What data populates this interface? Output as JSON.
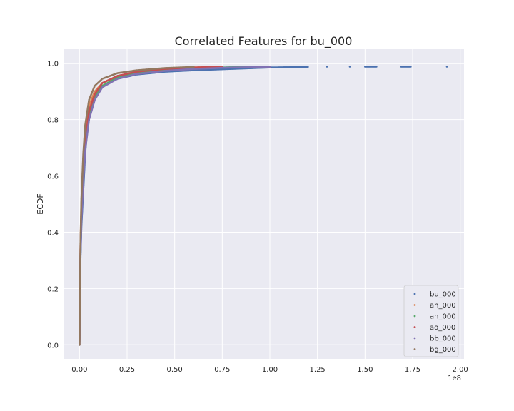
{
  "chart_data": {
    "type": "scatter",
    "title": "Correlated Features for bu_000",
    "xlabel": "",
    "ylabel": "ECDF",
    "x_offset_label": "1e8",
    "xlim": [
      -0.08,
      2.02
    ],
    "ylim": [
      -0.05,
      1.05
    ],
    "x_ticks": [
      0.0,
      0.25,
      0.5,
      0.75,
      1.0,
      1.25,
      1.5,
      1.75,
      2.0
    ],
    "x_tick_labels": [
      "0.00",
      "0.25",
      "0.50",
      "0.75",
      "1.00",
      "1.25",
      "1.50",
      "1.75",
      "2.00"
    ],
    "y_ticks": [
      0.0,
      0.2,
      0.4,
      0.6,
      0.8,
      1.0
    ],
    "y_tick_labels": [
      "0.0",
      "0.2",
      "0.4",
      "0.6",
      "0.8",
      "1.0"
    ],
    "grid": true,
    "legend_position": "bottom-right",
    "series": [
      {
        "name": "bu_000",
        "color": "#4c72b0",
        "points": [
          [
            0.0,
            0.0
          ],
          [
            0.005,
            0.3
          ],
          [
            0.01,
            0.42
          ],
          [
            0.02,
            0.55
          ],
          [
            0.03,
            0.68
          ],
          [
            0.04,
            0.76
          ],
          [
            0.06,
            0.84
          ],
          [
            0.08,
            0.88
          ],
          [
            0.12,
            0.92
          ],
          [
            0.2,
            0.945
          ],
          [
            0.3,
            0.96
          ],
          [
            0.45,
            0.97
          ],
          [
            0.6,
            0.975
          ],
          [
            0.8,
            0.98
          ],
          [
            1.0,
            0.985
          ],
          [
            1.2,
            0.987
          ],
          [
            1.3,
            0.988
          ],
          [
            1.42,
            0.988
          ],
          [
            1.5,
            0.988
          ],
          [
            1.56,
            0.988
          ],
          [
            1.69,
            0.988
          ],
          [
            1.74,
            0.988
          ],
          [
            1.93,
            0.988
          ]
        ]
      },
      {
        "name": "ah_000",
        "color": "#dd8452",
        "points": [
          [
            0.0,
            0.0
          ],
          [
            0.005,
            0.35
          ],
          [
            0.01,
            0.5
          ],
          [
            0.02,
            0.65
          ],
          [
            0.03,
            0.75
          ],
          [
            0.05,
            0.85
          ],
          [
            0.08,
            0.9
          ],
          [
            0.12,
            0.93
          ],
          [
            0.2,
            0.955
          ],
          [
            0.3,
            0.97
          ],
          [
            0.45,
            0.98
          ],
          [
            0.6,
            0.985
          ],
          [
            0.75,
            0.988
          ]
        ]
      },
      {
        "name": "an_000",
        "color": "#55a868",
        "points": [
          [
            0.0,
            0.0
          ],
          [
            0.005,
            0.32
          ],
          [
            0.01,
            0.45
          ],
          [
            0.02,
            0.6
          ],
          [
            0.03,
            0.7
          ],
          [
            0.05,
            0.82
          ],
          [
            0.08,
            0.88
          ],
          [
            0.12,
            0.92
          ],
          [
            0.2,
            0.95
          ],
          [
            0.3,
            0.965
          ],
          [
            0.45,
            0.975
          ],
          [
            0.6,
            0.982
          ],
          [
            0.8,
            0.986
          ],
          [
            0.95,
            0.988
          ]
        ]
      },
      {
        "name": "ao_000",
        "color": "#c44e52",
        "points": [
          [
            0.0,
            0.0
          ],
          [
            0.005,
            0.34
          ],
          [
            0.01,
            0.48
          ],
          [
            0.02,
            0.62
          ],
          [
            0.03,
            0.72
          ],
          [
            0.05,
            0.83
          ],
          [
            0.08,
            0.89
          ],
          [
            0.12,
            0.93
          ],
          [
            0.2,
            0.955
          ],
          [
            0.3,
            0.97
          ],
          [
            0.45,
            0.98
          ],
          [
            0.6,
            0.985
          ],
          [
            0.75,
            0.988
          ]
        ]
      },
      {
        "name": "bb_000",
        "color": "#8172b3",
        "points": [
          [
            0.0,
            0.0
          ],
          [
            0.005,
            0.31
          ],
          [
            0.01,
            0.44
          ],
          [
            0.02,
            0.58
          ],
          [
            0.03,
            0.69
          ],
          [
            0.05,
            0.8
          ],
          [
            0.08,
            0.87
          ],
          [
            0.12,
            0.915
          ],
          [
            0.2,
            0.945
          ],
          [
            0.3,
            0.962
          ],
          [
            0.45,
            0.973
          ],
          [
            0.6,
            0.98
          ],
          [
            0.8,
            0.985
          ],
          [
            1.0,
            0.987
          ]
        ]
      },
      {
        "name": "bg_000",
        "color": "#937860",
        "points": [
          [
            0.0,
            0.0
          ],
          [
            0.005,
            0.36
          ],
          [
            0.01,
            0.52
          ],
          [
            0.02,
            0.68
          ],
          [
            0.03,
            0.78
          ],
          [
            0.05,
            0.87
          ],
          [
            0.08,
            0.92
          ],
          [
            0.12,
            0.945
          ],
          [
            0.2,
            0.965
          ],
          [
            0.3,
            0.975
          ],
          [
            0.45,
            0.983
          ],
          [
            0.6,
            0.987
          ]
        ]
      }
    ]
  }
}
